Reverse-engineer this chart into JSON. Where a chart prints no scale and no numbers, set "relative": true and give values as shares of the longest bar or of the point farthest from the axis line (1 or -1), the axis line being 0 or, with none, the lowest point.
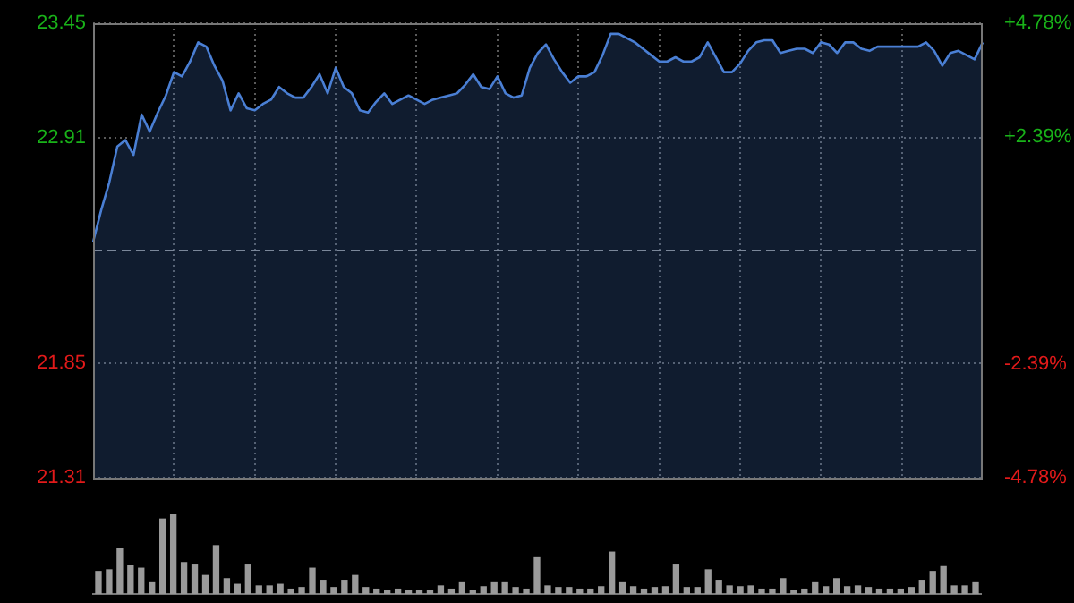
{
  "chart_data": [
    {
      "type": "area",
      "categories": [
        null,
        null,
        null,
        null,
        null,
        null,
        null,
        null,
        null,
        null,
        null,
        null,
        null,
        null,
        null,
        null,
        null,
        null,
        null,
        null,
        null,
        null,
        null,
        null,
        null,
        null,
        null,
        null,
        null,
        null,
        null,
        null,
        null,
        null,
        null,
        null,
        null,
        null,
        null,
        null,
        null,
        null,
        null,
        null,
        null,
        null,
        null,
        null,
        null,
        null,
        null,
        null,
        null,
        null,
        null,
        null,
        null,
        null,
        null,
        null,
        null,
        null,
        null,
        null,
        null,
        null,
        null,
        null,
        null,
        null,
        null,
        null,
        null,
        null,
        null,
        null,
        null,
        null,
        null,
        null,
        null,
        null,
        null,
        null,
        null,
        null,
        null,
        null,
        null,
        null,
        null,
        null,
        null,
        null,
        null,
        null,
        null,
        null,
        null,
        null,
        null,
        null,
        null,
        null,
        null,
        null,
        null,
        null,
        null,
        null,
        null
      ],
      "series": [
        {
          "color": "#4a7fd4",
          "values": [
            22.42,
            22.57,
            22.7,
            22.87,
            22.9,
            22.83,
            23.02,
            22.94,
            23.03,
            23.11,
            23.22,
            23.2,
            23.27,
            23.36,
            23.34,
            23.25,
            23.18,
            23.04,
            23.12,
            23.05,
            23.04,
            23.07,
            23.09,
            23.15,
            23.12,
            23.1,
            23.1,
            23.15,
            23.21,
            23.12,
            23.24,
            23.15,
            23.12,
            23.04,
            23.03,
            23.08,
            23.12,
            23.07,
            23.09,
            23.11,
            23.09,
            23.07,
            23.09,
            23.1,
            23.11,
            23.12,
            23.16,
            23.21,
            23.15,
            23.14,
            23.2,
            23.12,
            23.1,
            23.11,
            23.24,
            23.31,
            23.35,
            23.28,
            23.22,
            23.17,
            23.2,
            23.2,
            23.22,
            23.3,
            23.4,
            23.4,
            23.38,
            23.36,
            23.33,
            23.3,
            23.27,
            23.27,
            23.29,
            23.27,
            23.27,
            23.29,
            23.36,
            23.29,
            23.22,
            23.22,
            23.26,
            23.32,
            23.36,
            23.37,
            23.37,
            23.31,
            23.32,
            23.33,
            23.33,
            23.31,
            23.36,
            23.35,
            23.31,
            23.36,
            23.36,
            23.33,
            23.32,
            23.34,
            23.34,
            23.34,
            23.34,
            23.34,
            23.34,
            23.36,
            23.32,
            23.25,
            23.31,
            23.32,
            23.3,
            23.28,
            23.36
          ]
        }
      ],
      "ylim": [
        21.31,
        23.45
      ],
      "yticks": [
        23.45,
        22.91,
        21.85,
        21.31
      ],
      "y2lim": [
        -4.78,
        4.78
      ],
      "y2ticks": [
        {
          "value": 4.78,
          "label": "+4.78%"
        },
        {
          "value": 2.39,
          "label": "+2.39%"
        },
        {
          "value": -2.39,
          "label": "-2.39%"
        },
        {
          "value": -4.78,
          "label": "-4.78%"
        }
      ],
      "ref_lines": [
        {
          "axis": "y",
          "value": 22.38,
          "line_style": "dashed"
        }
      ],
      "grid": true,
      "legend": false,
      "marker": "none",
      "line_style": "solid"
    },
    {
      "type": "bar",
      "relative": true,
      "color": "#9a9a9a",
      "categories": [
        null,
        null,
        null,
        null,
        null,
        null,
        null,
        null,
        null,
        null,
        null,
        null,
        null,
        null,
        null,
        null,
        null,
        null,
        null,
        null,
        null,
        null,
        null,
        null,
        null,
        null,
        null,
        null,
        null,
        null,
        null,
        null,
        null,
        null,
        null,
        null,
        null,
        null,
        null,
        null,
        null,
        null,
        null,
        null,
        null,
        null,
        null,
        null,
        null,
        null,
        null,
        null,
        null,
        null,
        null,
        null,
        null,
        null,
        null,
        null,
        null,
        null,
        null,
        null,
        null,
        null,
        null,
        null,
        null,
        null,
        null,
        null,
        null,
        null,
        null,
        null,
        null,
        null,
        null,
        null,
        null,
        null,
        null
      ],
      "values": [
        0.28,
        0.3,
        0.56,
        0.35,
        0.32,
        0.15,
        0.93,
        1,
        0.39,
        0.37,
        0.23,
        0.6,
        0.19,
        0.12,
        0.37,
        0.1,
        0.1,
        0.12,
        0.06,
        0.08,
        0.32,
        0.17,
        0.08,
        0.17,
        0.23,
        0.08,
        0.06,
        0.04,
        0.06,
        0.04,
        0.04,
        0.04,
        0.1,
        0.06,
        0.15,
        0.04,
        0.09,
        0.15,
        0.15,
        0.08,
        0.06,
        0.45,
        0.1,
        0.08,
        0.08,
        0.06,
        0.06,
        0.09,
        0.52,
        0.15,
        0.09,
        0.06,
        0.08,
        0.09,
        0.37,
        0.08,
        0.08,
        0.3,
        0.17,
        0.1,
        0.09,
        0.1,
        0.06,
        0.06,
        0.19,
        0.04,
        0.06,
        0.15,
        0.09,
        0.19,
        0.09,
        0.1,
        0.08,
        0.06,
        0.06,
        0.06,
        0.08,
        0.17,
        0.28,
        0.34,
        0.1,
        0.1,
        0.15
      ],
      "legend": false
    }
  ]
}
